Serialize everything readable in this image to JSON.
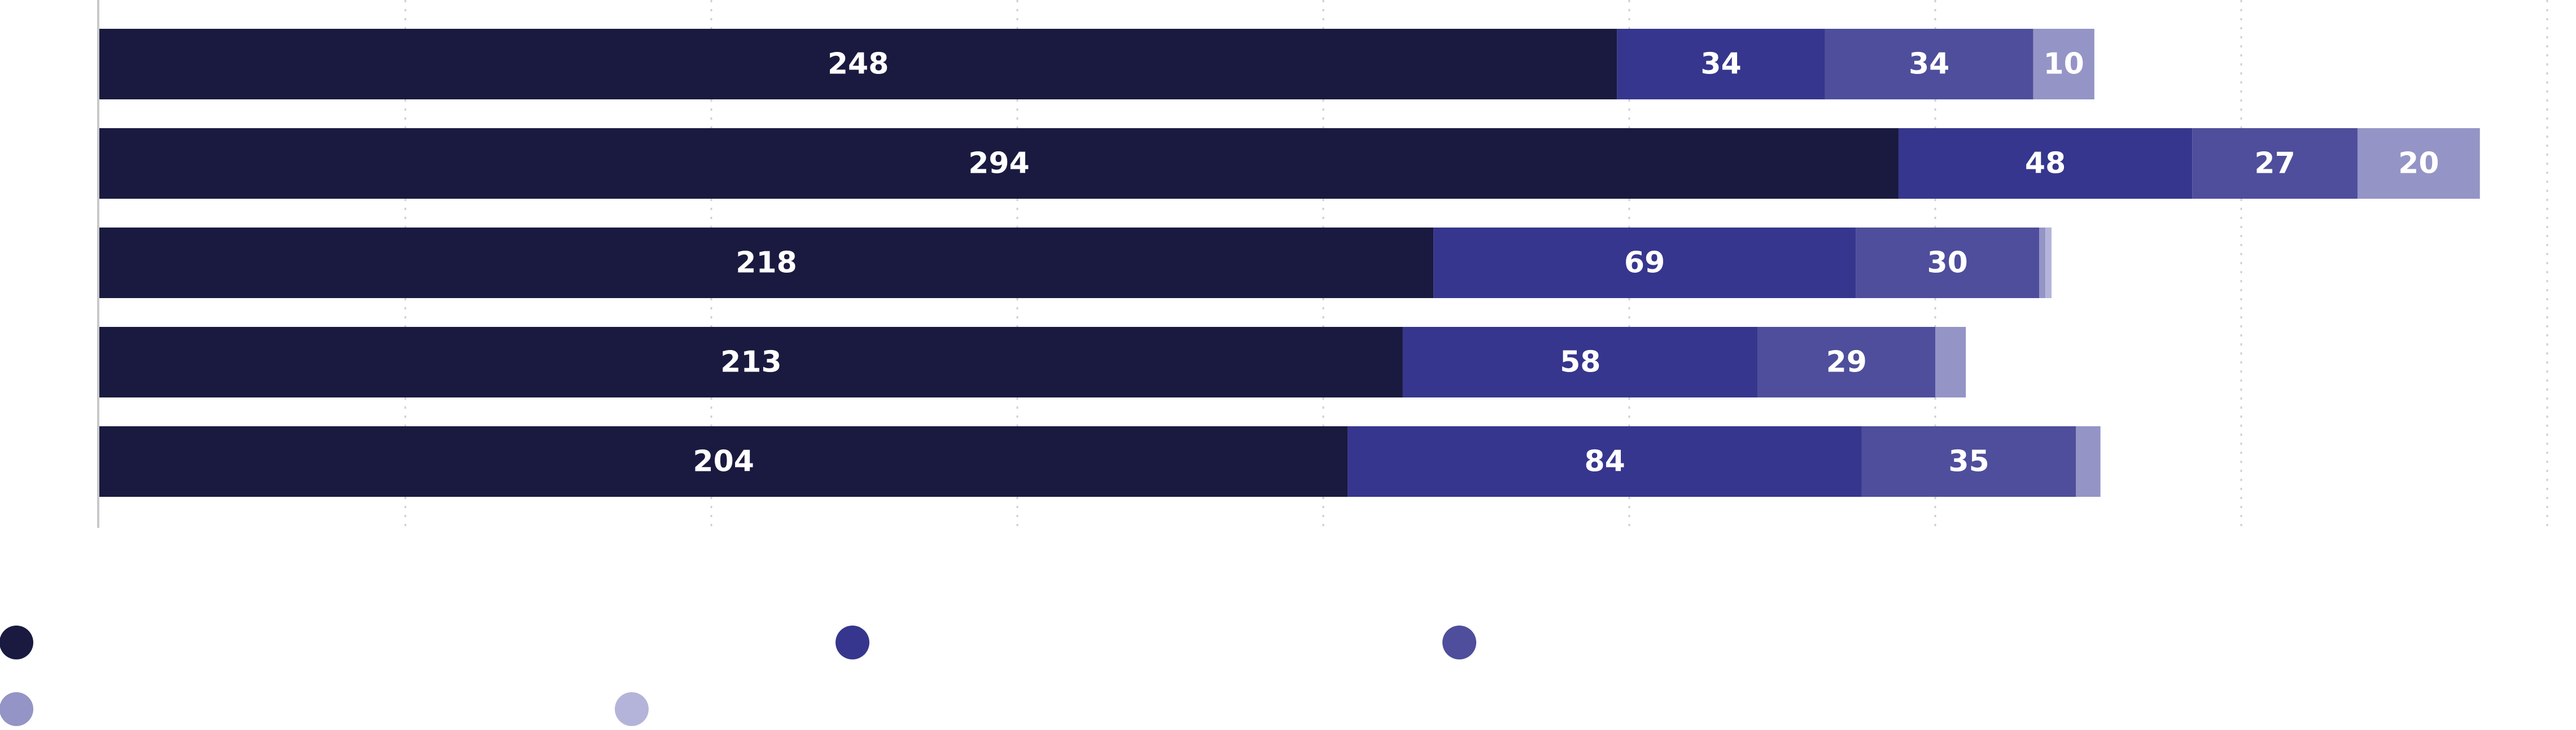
{
  "chart_data": {
    "type": "bar",
    "orientation": "horizontal",
    "stacked": true,
    "xlim": [
      0,
      400
    ],
    "grid": true,
    "legend_placement": "bottom",
    "categories": [
      "",
      "",
      "",
      "",
      ""
    ],
    "series": [
      {
        "color": "#1a1a40",
        "values": [
          248,
          294,
          218,
          213,
          204
        ],
        "labels": [
          "248",
          "294",
          "218",
          "213",
          "204"
        ]
      },
      {
        "color": "#36368e",
        "values": [
          34,
          48,
          69,
          58,
          84
        ],
        "labels": [
          "34",
          "48",
          "69",
          "58",
          "84"
        ]
      },
      {
        "color": "#4e4e9c",
        "values": [
          34,
          27,
          30,
          29,
          35
        ],
        "labels": [
          "34",
          "27",
          "30",
          "29",
          "35"
        ]
      },
      {
        "color": "#9494c6",
        "values": [
          10,
          20,
          1,
          5,
          4
        ],
        "labels": [
          "10",
          "20",
          "",
          "",
          ""
        ]
      },
      {
        "color": "#b4b4da",
        "values": [
          0,
          0,
          1,
          0,
          0
        ],
        "labels": [
          "",
          "",
          "",
          "",
          ""
        ]
      }
    ]
  }
}
